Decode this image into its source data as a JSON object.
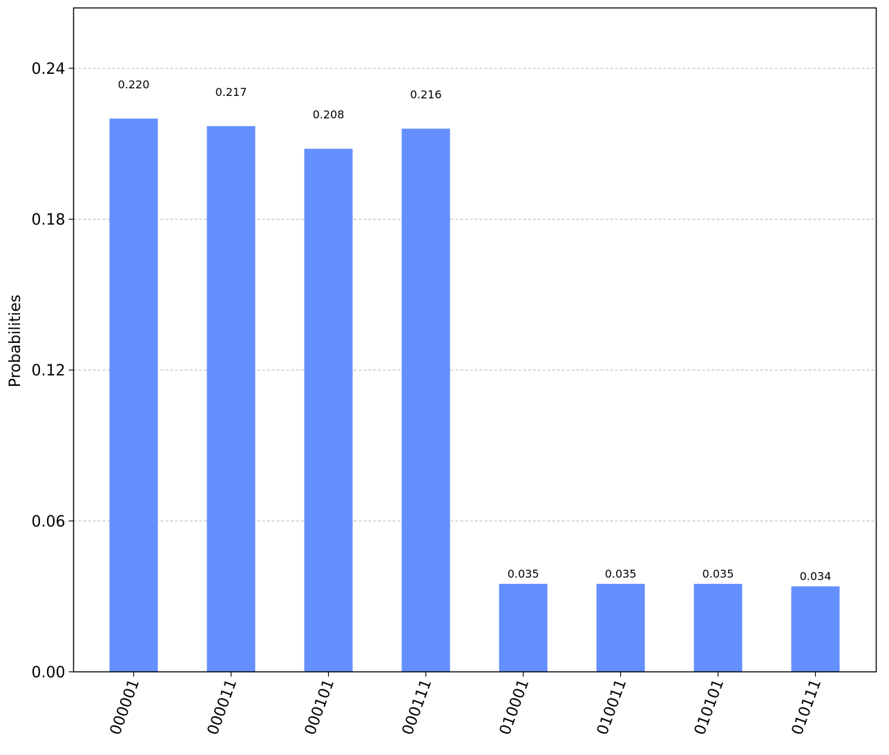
{
  "chart_data": {
    "type": "bar",
    "categories": [
      "000001",
      "000011",
      "000101",
      "000111",
      "010001",
      "010011",
      "010101",
      "010111"
    ],
    "values": [
      0.22,
      0.217,
      0.208,
      0.216,
      0.035,
      0.035,
      0.035,
      0.034
    ],
    "data_labels": [
      "0.220",
      "0.217",
      "0.208",
      "0.216",
      "0.035",
      "0.035",
      "0.035",
      "0.034"
    ],
    "title": "",
    "xlabel": "",
    "ylabel": "Probabilities",
    "ylim": [
      0,
      0.264
    ],
    "yticks": [
      0.0,
      0.06,
      0.12,
      0.18,
      0.24
    ],
    "ytick_labels": [
      "0.00",
      "0.06",
      "0.12",
      "0.18",
      "0.24"
    ],
    "xtick_rotation": "70 degrees",
    "grid": "horizontal dashed",
    "legend": "none",
    "bar_color": "#648fff"
  }
}
